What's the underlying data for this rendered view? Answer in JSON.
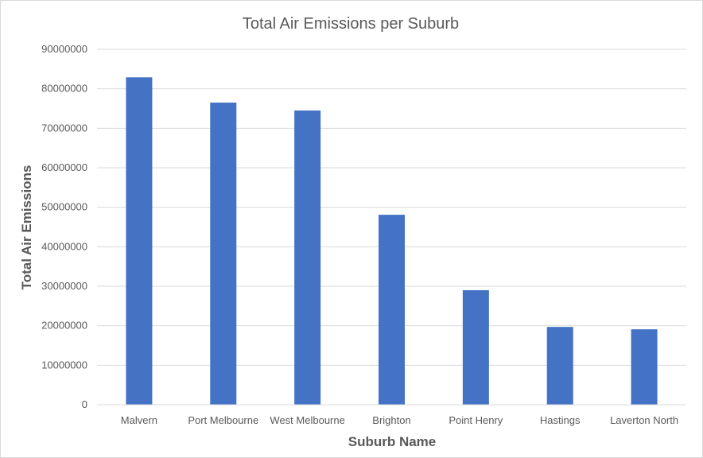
{
  "chart_data": {
    "type": "bar",
    "title": "Total Air Emissions per Suburb",
    "xlabel": "Suburb Name",
    "ylabel": "Total Air Emissions",
    "categories": [
      "Malvern",
      "Port Melbourne",
      "West Melbourne",
      "Brighton",
      "Point Henry",
      "Hastings",
      "Laverton North"
    ],
    "values": [
      82900000,
      76500000,
      74500000,
      48100000,
      29000000,
      19700000,
      19100000
    ],
    "ylim": [
      0,
      90000000
    ],
    "yticks": [
      "0",
      "10000000",
      "20000000",
      "30000000",
      "40000000",
      "50000000",
      "60000000",
      "70000000",
      "80000000",
      "90000000"
    ],
    "grid": true,
    "legend": "none",
    "bar_color": "#4472c4"
  }
}
